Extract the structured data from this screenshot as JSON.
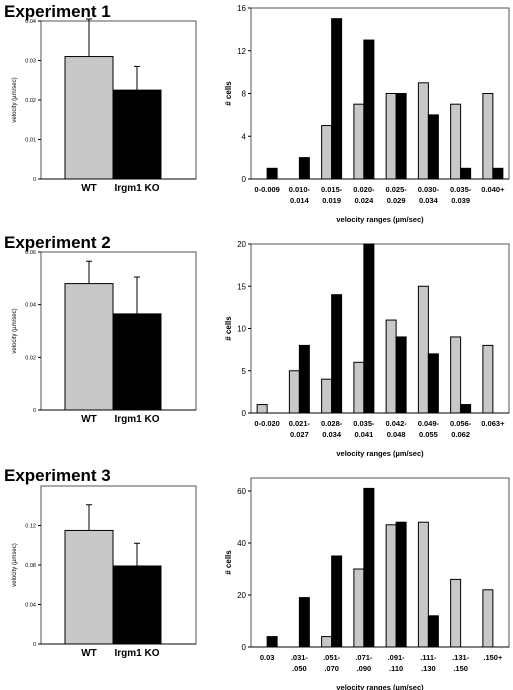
{
  "experiments": [
    {
      "title": "Experiment 1"
    },
    {
      "title": "Experiment 2"
    },
    {
      "title": "Experiment 3"
    }
  ],
  "colors": {
    "wt": "#c8c8c8",
    "ko": "#000000"
  },
  "chart_data": [
    {
      "type": "bar",
      "categories": [
        "WT",
        "Irgm1 KO"
      ],
      "values": [
        0.031,
        0.0225
      ],
      "errors": [
        0.0095,
        0.006
      ],
      "ylabel": "velocity (µm/sec)",
      "ylim": [
        0,
        0.04
      ],
      "yticks": [
        0,
        0.01,
        0.02,
        0.03,
        0.04
      ],
      "ytick_labels": [
        "0",
        "0.01",
        "0.02",
        "0.03",
        "0.04"
      ]
    },
    {
      "type": "bar",
      "categories": [
        "0-0.009",
        "0.010-\n0.014",
        "0.015-\n0.019",
        "0.020-\n0.024",
        "0.025-\n0.029",
        "0.030-\n0.034",
        "0.035-\n0.039",
        "0.040+"
      ],
      "series": [
        {
          "values": [
            0,
            0,
            5,
            7,
            8,
            9,
            7,
            8
          ]
        },
        {
          "values": [
            1,
            2,
            15,
            13,
            8,
            6,
            1,
            1
          ]
        }
      ],
      "xlabel": "velocity ranges (µm/sec)",
      "ylabel": "# cells",
      "ylim": [
        0,
        16
      ],
      "yticks": [
        0,
        4,
        8,
        12,
        16
      ]
    },
    {
      "type": "bar",
      "categories": [
        "WT",
        "Irgm1 KO"
      ],
      "values": [
        0.048,
        0.0365
      ],
      "errors": [
        0.0085,
        0.014
      ],
      "ylabel": "velocity (µm/sec)",
      "ylim": [
        0,
        0.06
      ],
      "yticks": [
        0,
        0.02,
        0.04,
        0.06
      ],
      "ytick_labels": [
        "0",
        "0.02",
        "0.04",
        "0.06"
      ]
    },
    {
      "type": "bar",
      "categories": [
        "0-0.020",
        "0.021-\n0.027",
        "0.028-\n0.034",
        "0.035-\n0.041",
        "0.042-\n0.048",
        "0.049-\n0.055",
        "0.056-\n0.062",
        "0.063+"
      ],
      "series": [
        {
          "values": [
            1,
            5,
            4,
            6,
            11,
            15,
            9,
            8
          ]
        },
        {
          "values": [
            0,
            8,
            14,
            20,
            9,
            7,
            1,
            0
          ]
        }
      ],
      "xlabel": "velocity ranges (µm/sec)",
      "ylabel": "# cells",
      "ylim": [
        0,
        20
      ],
      "yticks": [
        0,
        5,
        10,
        15,
        20
      ]
    },
    {
      "type": "bar",
      "categories": [
        "WT",
        "Irgm1 KO"
      ],
      "values": [
        0.115,
        0.079
      ],
      "errors": [
        0.026,
        0.023
      ],
      "ylabel": "velocity (µmsec)",
      "ylim": [
        0,
        0.16
      ],
      "yticks": [
        0,
        0.04,
        0.08,
        0.12
      ],
      "ytick_labels": [
        "0",
        "0.04",
        "0.08",
        "0.12"
      ]
    },
    {
      "type": "bar",
      "categories": [
        "0.03",
        ".031-\n.050",
        ".051-\n.070",
        ".071-\n.090",
        ".091-\n.110",
        ".111-\n.130",
        ".131-\n.150",
        ".150+"
      ],
      "series": [
        {
          "values": [
            0,
            0,
            4,
            30,
            47,
            48,
            26,
            22
          ]
        },
        {
          "values": [
            4,
            19,
            35,
            61,
            48,
            12,
            0,
            0
          ]
        }
      ],
      "xlabel": "velocity ranges (µm/sec)",
      "ylabel": "# cells",
      "ylim": [
        0,
        65
      ],
      "yticks": [
        0,
        20,
        40,
        60
      ]
    }
  ]
}
